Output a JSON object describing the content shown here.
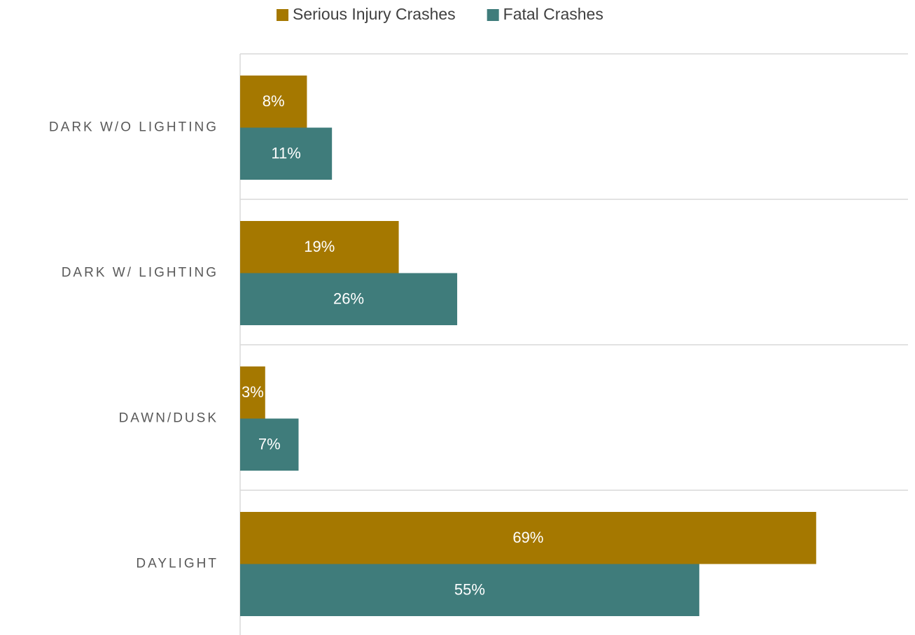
{
  "chart_data": {
    "type": "bar",
    "orientation": "horizontal",
    "categories": [
      "DARK W/O LIGHTING",
      "DARK W/ LIGHTING",
      "DAWN/DUSK",
      "DAYLIGHT"
    ],
    "series": [
      {
        "name": "Serious Injury Crashes",
        "color": "#a57800",
        "values": [
          8,
          19,
          3,
          69
        ],
        "value_labels": [
          "8%",
          "19%",
          "3%",
          "69%"
        ]
      },
      {
        "name": "Fatal Crashes",
        "color": "#3f7c7b",
        "values": [
          11,
          26,
          7,
          55
        ],
        "value_labels": [
          "11%",
          "26%",
          "7%",
          "55%"
        ]
      }
    ],
    "xlim": [
      0,
      80
    ],
    "legend": "top"
  }
}
